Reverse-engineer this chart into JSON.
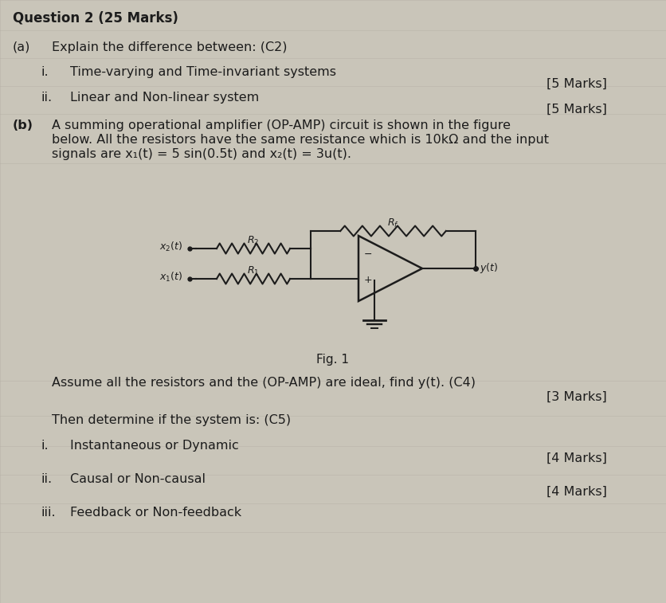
{
  "bg_color": "#c9c5b9",
  "text_color": "#1c1c1c",
  "title": "Question 2 (25 Marks)",
  "a_label": "(a)",
  "a_text": "Explain the difference between: (C2)",
  "i_roman": "i.",
  "i_text": "Time-varying and Time-invariant systems",
  "i_marks": "[5 Marks]",
  "ii_roman": "ii.",
  "ii_text": "Linear and Non-linear system",
  "ii_marks": "[5 Marks]",
  "b_label": "(b)",
  "b_line1": "A summing operational amplifier (OP-AMP) circuit is shown in the figure",
  "b_line2": "below. All the resistors have the same resistance which is 10kΩ and the input",
  "b_line3": "signals are x₁(t) = 5 sin(0.5t) and x₂(t) = 3u(t).",
  "fig_label": "Fig. 1",
  "assume_text": "Assume all the resistors and the (OP-AMP) are ideal, find y(t). (C4)",
  "assume_marks": "[3 Marks]",
  "then_text": "Then determine if the system is: (C5)",
  "si_roman": "i.",
  "si_text": "Instantaneous or Dynamic",
  "si_marks": "[4 Marks]",
  "sii_roman": "ii.",
  "sii_text": "Causal or Non-causal",
  "sii_marks": "[4 Marks]",
  "siii_roman": "iii.",
  "siii_text": "Feedback or Non-feedback",
  "grid_color": "#b2ada2",
  "cc": "#1c1c1c"
}
